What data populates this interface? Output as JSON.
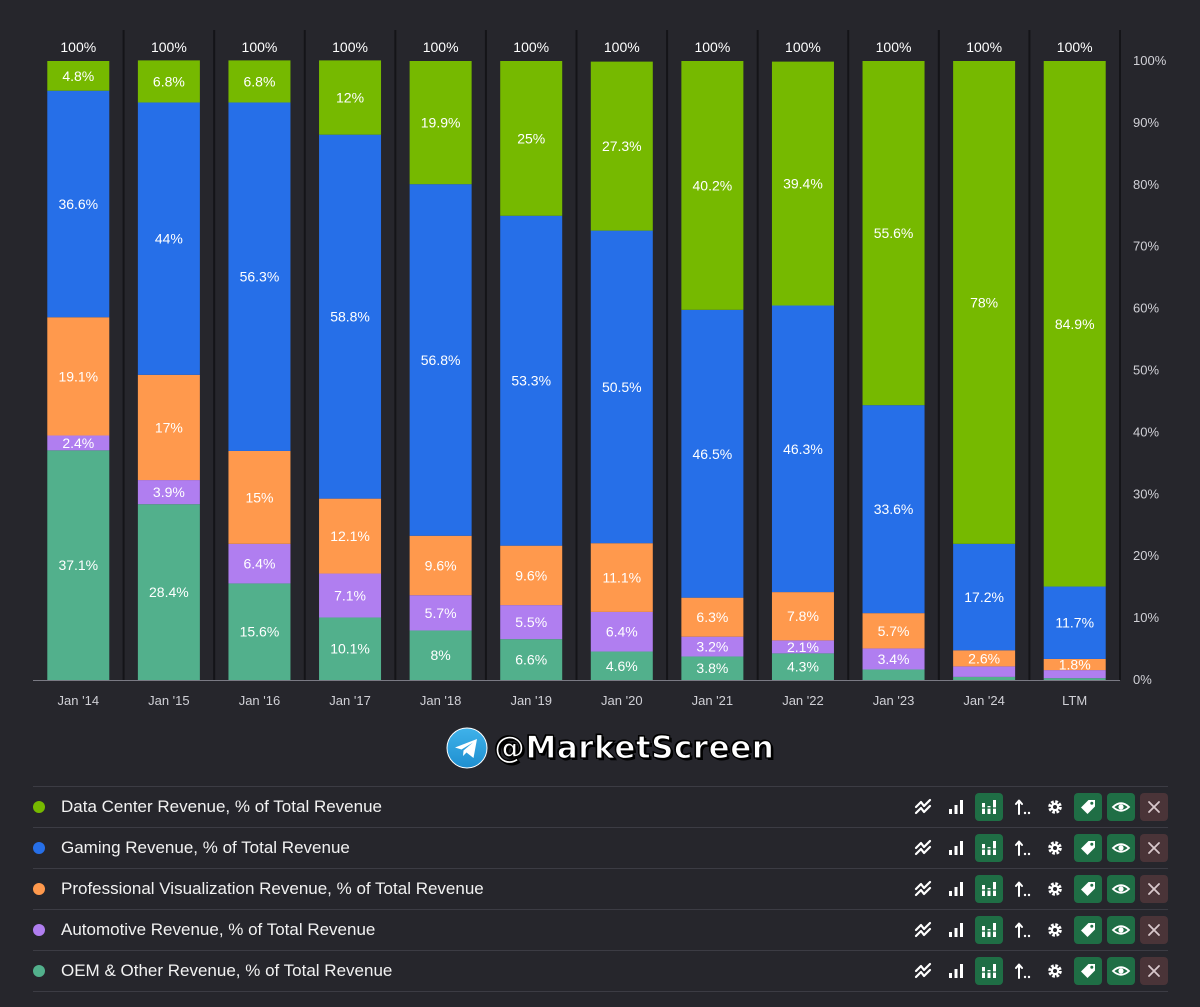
{
  "chart_data": {
    "type": "bar",
    "stacked": true,
    "categories": [
      "Jan '14",
      "Jan '15",
      "Jan '16",
      "Jan '17",
      "Jan '18",
      "Jan '19",
      "Jan '20",
      "Jan '21",
      "Jan '22",
      "Jan '23",
      "Jan '24",
      "LTM"
    ],
    "series": [
      {
        "name": "OEM & Other Revenue, % of Total Revenue",
        "color": "#52b08c",
        "values": [
          37.1,
          28.4,
          15.6,
          10.1,
          8,
          6.6,
          4.6,
          3.8,
          4.3,
          1.7,
          0.5,
          0.3
        ],
        "labels": [
          "37.1%",
          "28.4%",
          "15.6%",
          "10.1%",
          "8%",
          "6.6%",
          "4.6%",
          "3.8%",
          "4.3%",
          "",
          "",
          ""
        ]
      },
      {
        "name": "Automotive Revenue, % of Total Revenue",
        "color": "#b07ef0",
        "values": [
          2.4,
          3.9,
          6.4,
          7.1,
          5.7,
          5.5,
          6.4,
          3.2,
          2.1,
          3.4,
          1.7,
          1.3
        ],
        "labels": [
          "2.4%",
          "3.9%",
          "6.4%",
          "7.1%",
          "5.7%",
          "5.5%",
          "6.4%",
          "3.2%",
          "2.1%",
          "3.4%",
          "",
          ""
        ]
      },
      {
        "name": "Professional Visualization Revenue, % of Total Revenue",
        "color": "#ff994d",
        "values": [
          19.1,
          17,
          15,
          12.1,
          9.6,
          9.6,
          11.1,
          6.3,
          7.8,
          5.7,
          2.6,
          1.8
        ],
        "labels": [
          "19.1%",
          "17%",
          "15%",
          "12.1%",
          "9.6%",
          "9.6%",
          "11.1%",
          "6.3%",
          "7.8%",
          "5.7%",
          "2.6%",
          "1.8%"
        ]
      },
      {
        "name": "Gaming Revenue, % of Total Revenue",
        "color": "#266fe8",
        "values": [
          36.6,
          44,
          56.3,
          58.8,
          56.8,
          53.3,
          50.5,
          46.5,
          46.3,
          33.6,
          17.2,
          11.7
        ],
        "labels": [
          "36.6%",
          "44%",
          "56.3%",
          "58.8%",
          "56.8%",
          "53.3%",
          "50.5%",
          "46.5%",
          "46.3%",
          "33.6%",
          "17.2%",
          "11.7%"
        ]
      },
      {
        "name": "Data Center Revenue, % of Total Revenue",
        "color": "#76b900",
        "values": [
          4.8,
          6.8,
          6.8,
          12,
          19.9,
          25,
          27.3,
          40.2,
          39.4,
          55.6,
          78,
          84.9
        ],
        "labels": [
          "4.8%",
          "6.8%",
          "6.8%",
          "12%",
          "19.9%",
          "25%",
          "27.3%",
          "40.2%",
          "39.4%",
          "55.6%",
          "78%",
          "84.9%"
        ]
      }
    ],
    "totals": [
      "100%",
      "100%",
      "100%",
      "100%",
      "100%",
      "100%",
      "100%",
      "100%",
      "100%",
      "100%",
      "100%",
      "100%"
    ],
    "y_ticks": [
      "0%",
      "10%",
      "20%",
      "30%",
      "40%",
      "50%",
      "60%",
      "70%",
      "80%",
      "90%",
      "100%"
    ],
    "ylim": [
      0,
      100
    ],
    "title": "",
    "xlabel": "",
    "ylabel": "",
    "y_axis_side": "right"
  },
  "watermark": {
    "text": "@MarketScreen",
    "icon": "telegram-icon"
  },
  "legend": {
    "items": [
      {
        "label": "Data Center Revenue, % of Total Revenue",
        "color": "#76b900"
      },
      {
        "label": "Gaming Revenue, % of Total Revenue",
        "color": "#266fe8"
      },
      {
        "label": "Professional Visualization Revenue, % of Total Revenue",
        "color": "#ff994d"
      },
      {
        "label": "Automotive Revenue, % of Total Revenue",
        "color": "#b07ef0"
      },
      {
        "label": "OEM & Other Revenue, % of Total Revenue",
        "color": "#52b08c"
      }
    ],
    "actions": [
      "line-chart-icon",
      "bar-chart-icon",
      "stacked-bar-icon",
      "sort-icon",
      "gear-icon",
      "tag-icon",
      "eye-icon",
      "close-icon"
    ]
  }
}
